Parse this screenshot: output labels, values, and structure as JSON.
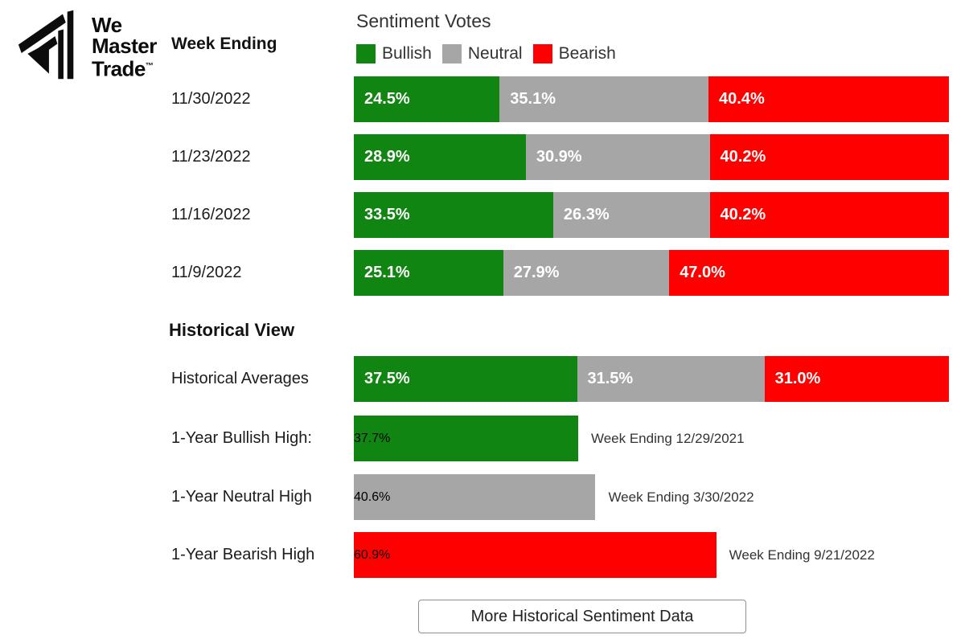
{
  "brand": {
    "line1": "We",
    "line2": "Master",
    "line3": "Trade",
    "tm": "TM"
  },
  "labels": {
    "week_ending": "Week Ending",
    "title": "Sentiment Votes",
    "historical_heading": "Historical View",
    "button": "More Historical Sentiment Data"
  },
  "colors": {
    "bullish": "#118511",
    "neutral": "#a6a6a6",
    "bearish": "#ff0000"
  },
  "legend": {
    "bullish": "Bullish",
    "neutral": "Neutral",
    "bearish": "Bearish"
  },
  "weeks": [
    {
      "date": "11/30/2022",
      "bullish": "24.5%",
      "neutral": "35.1%",
      "bearish": "40.4%"
    },
    {
      "date": "11/23/2022",
      "bullish": "28.9%",
      "neutral": "30.9%",
      "bearish": "40.2%"
    },
    {
      "date": "11/16/2022",
      "bullish": "33.5%",
      "neutral": "26.3%",
      "bearish": "40.2%"
    },
    {
      "date": "11/9/2022",
      "bullish": "25.1%",
      "neutral": "27.9%",
      "bearish": "47.0%"
    }
  ],
  "historical": {
    "averages": {
      "label": "Historical Averages",
      "bullish": "37.5%",
      "neutral": "31.5%",
      "bearish": "31.0%"
    },
    "highs": [
      {
        "label": "1-Year Bullish High:",
        "value": "37.7%",
        "annotation": "Week Ending 12/29/2021"
      },
      {
        "label": "1-Year Neutral High",
        "value": "40.6%",
        "annotation": "Week Ending 3/30/2022"
      },
      {
        "label": "1-Year Bearish High",
        "value": "60.9%",
        "annotation": "Week Ending 9/21/2022"
      }
    ]
  },
  "chart_data": {
    "type": "bar",
    "subtype": "horizontal-stacked",
    "title": "Sentiment Votes",
    "row_axis_label": "Week Ending",
    "categories": [
      "11/30/2022",
      "11/23/2022",
      "11/16/2022",
      "11/9/2022"
    ],
    "series": [
      {
        "name": "Bullish",
        "color": "#118511",
        "values": [
          24.5,
          28.9,
          33.5,
          25.1
        ]
      },
      {
        "name": "Neutral",
        "color": "#a6a6a6",
        "values": [
          35.1,
          30.9,
          26.3,
          27.9
        ]
      },
      {
        "name": "Bearish",
        "color": "#ff0000",
        "values": [
          40.4,
          40.2,
          40.2,
          47.0
        ]
      }
    ],
    "xlim": [
      0,
      100
    ],
    "legend_position": "top",
    "grid": false,
    "historical": {
      "heading": "Historical View",
      "averages": {
        "label": "Historical Averages",
        "bullish": 37.5,
        "neutral": 31.5,
        "bearish": 31.0
      },
      "highs": [
        {
          "label": "1-Year Bullish High:",
          "series": "Bullish",
          "value": 37.7,
          "week_ending": "12/29/2021"
        },
        {
          "label": "1-Year Neutral High",
          "series": "Neutral",
          "value": 40.6,
          "week_ending": "3/30/2022"
        },
        {
          "label": "1-Year Bearish High",
          "series": "Bearish",
          "value": 60.9,
          "week_ending": "9/21/2022"
        }
      ]
    }
  }
}
